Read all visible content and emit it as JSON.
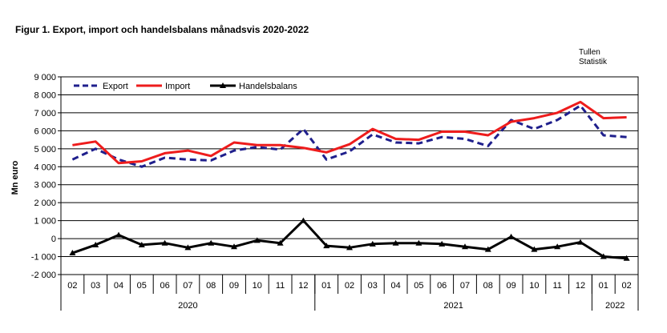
{
  "title": "Figur 1. Export, import och handelsbalans månadsvis 2020-2022",
  "source": [
    "Tullen",
    "Statistik"
  ],
  "chart_data": {
    "type": "line",
    "title": "Figur 1. Export, import och handelsbalans månadsvis 2020-2022",
    "ylabel": "Mn euro",
    "xlabel": "",
    "ylim": [
      -2000,
      9000
    ],
    "yticks": [
      -2000,
      -1000,
      0,
      1000,
      2000,
      3000,
      4000,
      5000,
      6000,
      7000,
      8000,
      9000
    ],
    "ytick_labels": [
      "-2 000",
      "-1 000",
      "0",
      "1 000",
      "2 000",
      "3 000",
      "4 000",
      "5 000",
      "6 000",
      "7 000",
      "8 000",
      "9 000"
    ],
    "grid": true,
    "legend_position": "top-left",
    "categories": [
      "02",
      "03",
      "04",
      "05",
      "06",
      "07",
      "08",
      "09",
      "10",
      "11",
      "12",
      "01",
      "02",
      "03",
      "04",
      "05",
      "06",
      "07",
      "08",
      "09",
      "10",
      "11",
      "12",
      "01",
      "02"
    ],
    "years": [
      {
        "label": "2020",
        "count": 11
      },
      {
        "label": "2021",
        "count": 12
      },
      {
        "label": "2022",
        "count": 2
      }
    ],
    "series": [
      {
        "name": "Export",
        "color": "#1f1f8c",
        "style": "dashed",
        "values": [
          4400,
          5000,
          4400,
          4000,
          4500,
          4400,
          4350,
          4900,
          5100,
          4950,
          6100,
          4400,
          4850,
          5800,
          5350,
          5300,
          5650,
          5550,
          5150,
          6600,
          6100,
          6600,
          7400,
          5750,
          5650
        ]
      },
      {
        "name": "Import",
        "color": "#ee1c1c",
        "style": "solid",
        "values": [
          5200,
          5400,
          4200,
          4300,
          4750,
          4900,
          4600,
          5350,
          5200,
          5200,
          5050,
          4800,
          5250,
          6100,
          5550,
          5500,
          5950,
          5950,
          5750,
          6500,
          6700,
          7000,
          7600,
          6700,
          6750
        ]
      },
      {
        "name": "Handelsbalans",
        "color": "#000000",
        "style": "solid-triangle",
        "values": [
          -800,
          -350,
          200,
          -350,
          -250,
          -500,
          -250,
          -450,
          -100,
          -250,
          1000,
          -400,
          -500,
          -300,
          -250,
          -250,
          -300,
          -450,
          -600,
          100,
          -600,
          -450,
          -200,
          -1000,
          -1100
        ]
      }
    ]
  }
}
